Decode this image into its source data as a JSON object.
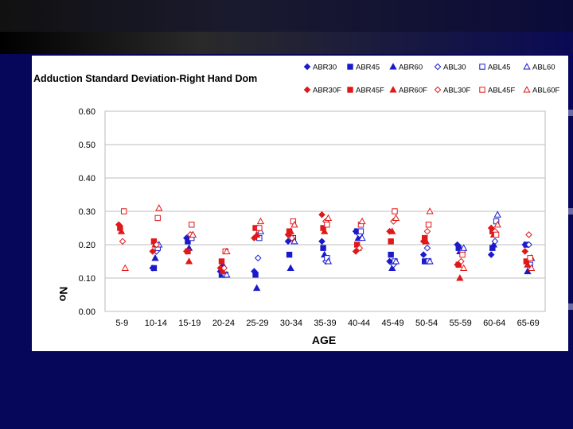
{
  "chart_data": {
    "type": "scatter",
    "title": "Adduction Standard Deviation-Right Hand Dom",
    "xlabel": "AGE",
    "ylabel": "No",
    "ylim": [
      0,
      0.6
    ],
    "yticks": [
      "0.00",
      "0.10",
      "0.20",
      "0.30",
      "0.40",
      "0.50",
      "0.60"
    ],
    "categories": [
      "5-9",
      "10-14",
      "15-19",
      "20-24",
      "25-29",
      "30-34",
      "35-39",
      "40-44",
      "45-49",
      "50-54",
      "55-59",
      "60-64",
      "65-69"
    ],
    "series": [
      {
        "name": "ABR30",
        "color": "#1a1acc",
        "marker": "diamond",
        "fill": true,
        "values": [
          null,
          0.13,
          0.22,
          0.12,
          0.12,
          0.21,
          0.21,
          0.24,
          0.15,
          0.17,
          0.2,
          0.17,
          0.2
        ]
      },
      {
        "name": "ABR45",
        "color": "#1a1acc",
        "marker": "square",
        "fill": true,
        "values": [
          null,
          0.13,
          0.21,
          0.11,
          0.11,
          0.17,
          0.19,
          0.24,
          0.17,
          0.15,
          0.19,
          0.19,
          0.2
        ]
      },
      {
        "name": "ABR60",
        "color": "#1a1acc",
        "marker": "triangle",
        "fill": true,
        "values": [
          null,
          0.16,
          0.19,
          0.14,
          0.07,
          0.13,
          0.17,
          0.22,
          0.13,
          0.15,
          0.18,
          0.2,
          0.12
        ]
      },
      {
        "name": "ABL30",
        "color": "#1a1acc",
        "marker": "diamond",
        "fill": false,
        "values": [
          null,
          0.18,
          0.23,
          0.11,
          0.16,
          0.22,
          0.15,
          0.23,
          0.14,
          0.19,
          0.18,
          0.21,
          0.2
        ]
      },
      {
        "name": "ABL45",
        "color": "#1a1acc",
        "marker": "square",
        "fill": false,
        "values": [
          null,
          0.19,
          0.22,
          0.11,
          0.22,
          0.22,
          0.16,
          0.24,
          0.15,
          0.15,
          0.18,
          0.27,
          0.14
        ]
      },
      {
        "name": "ABL60",
        "color": "#1a1acc",
        "marker": "triangle",
        "fill": false,
        "values": [
          null,
          0.2,
          0.23,
          0.11,
          0.24,
          0.21,
          0.15,
          0.22,
          0.15,
          0.15,
          0.19,
          0.29,
          0.16
        ]
      },
      {
        "name": "ABR30F",
        "color": "#e01818",
        "marker": "diamond",
        "fill": true,
        "values": [
          0.26,
          0.18,
          0.18,
          0.13,
          0.22,
          0.23,
          0.29,
          0.18,
          0.24,
          0.21,
          0.14,
          0.25,
          0.18
        ]
      },
      {
        "name": "ABR45F",
        "color": "#e01818",
        "marker": "square",
        "fill": true,
        "values": [
          0.25,
          0.21,
          0.18,
          0.15,
          0.25,
          0.24,
          0.25,
          0.2,
          0.21,
          0.22,
          0.14,
          0.24,
          0.15
        ]
      },
      {
        "name": "ABR60F",
        "color": "#e01818",
        "marker": "triangle",
        "fill": true,
        "values": [
          0.24,
          0.2,
          0.15,
          0.12,
          0.23,
          0.24,
          0.24,
          0.19,
          0.24,
          0.21,
          0.1,
          0.23,
          0.14
        ]
      },
      {
        "name": "ABL30F",
        "color": "#e01818",
        "marker": "diamond",
        "fill": false,
        "values": [
          0.21,
          0.2,
          0.23,
          0.13,
          0.25,
          0.22,
          0.27,
          0.19,
          0.27,
          0.24,
          0.15,
          0.24,
          0.23
        ]
      },
      {
        "name": "ABL45F",
        "color": "#e01818",
        "marker": "square",
        "fill": false,
        "values": [
          0.3,
          0.28,
          0.26,
          0.18,
          0.25,
          0.27,
          0.26,
          0.26,
          0.3,
          0.26,
          0.17,
          0.23,
          0.16
        ]
      },
      {
        "name": "ABL60F",
        "color": "#e01818",
        "marker": "triangle",
        "fill": false,
        "values": [
          0.13,
          0.31,
          0.23,
          0.18,
          0.27,
          0.26,
          0.28,
          0.27,
          0.28,
          0.3,
          0.13,
          0.26,
          0.13
        ]
      }
    ]
  }
}
